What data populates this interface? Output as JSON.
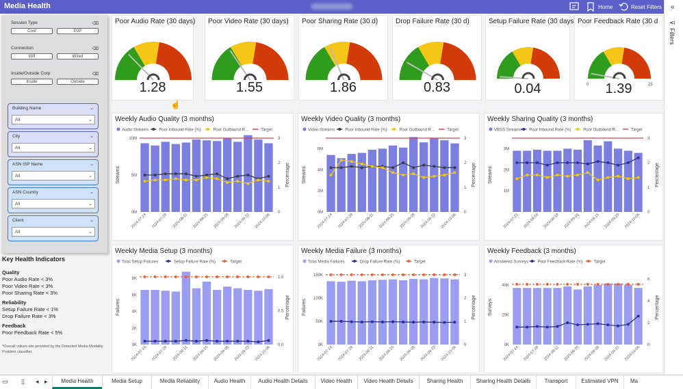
{
  "header": {
    "title": "Media Health",
    "home_label": "Home",
    "reset_label": "Reset Filters"
  },
  "filters_pane": {
    "label": "Filters"
  },
  "slicers": {
    "session_type": {
      "label": "Session Type",
      "options": [
        "Conf",
        "P2P"
      ]
    },
    "connection": {
      "label": "Connection",
      "options": [
        "Wifi",
        "Wired"
      ]
    },
    "inside_outside": {
      "label": "Inside/Outside Corp",
      "options": [
        "Inside",
        "Outside"
      ]
    },
    "dropdowns": [
      {
        "label": "Building Name",
        "value": "All"
      },
      {
        "label": "City",
        "value": "All"
      },
      {
        "label": "ASN ISP Name",
        "value": "All"
      },
      {
        "label": "ASN Country",
        "value": "All"
      },
      {
        "label": "Client",
        "value": "All"
      }
    ]
  },
  "khi": {
    "title": "Key Health Indicators",
    "groups": [
      {
        "name": "Quality",
        "items": [
          "Poor Audio Rate < 3%",
          "Poor Video Rate < 3%",
          "Poor Sharing Rate < 3%"
        ]
      },
      {
        "name": "Reliability",
        "items": [
          "Setup Failure Rate < 1%",
          "Drop Failure Rate < 3%"
        ]
      },
      {
        "name": "Feedback",
        "items": [
          "Poor Feedback Rate < 5%"
        ]
      }
    ],
    "footnote": "*Overall values are provided by the Detected Media Modality Problem classifier."
  },
  "gauges": [
    {
      "title": "Poor Audio Rate (30 days)",
      "value": "1.28",
      "num": 1.28,
      "max": 5,
      "ticks": []
    },
    {
      "title": "Poor Video Rate (30 days)",
      "value": "1.55",
      "num": 1.55,
      "max": 5,
      "ticks": []
    },
    {
      "title": "Poor Sharing Rate (30 d)",
      "value": "1.86",
      "num": 1.86,
      "max": 5,
      "ticks": []
    },
    {
      "title": "Drop Failure Rate (30 d)",
      "value": "0.83",
      "num": 0.83,
      "max": 5,
      "ticks": []
    },
    {
      "title": "Setup Failure Rate (30 days)",
      "value": "0.04",
      "num": 0.04,
      "max": 2,
      "ticks": []
    },
    {
      "title": "Poor Feedback Rate (30 d",
      "value": "1.39",
      "num": 1.39,
      "max": 25,
      "ticks": [
        "0",
        "25"
      ]
    }
  ],
  "chart_data": [
    {
      "type": "bar",
      "title": "Weekly Audio Quality (3 months)",
      "legend": [
        "Audio Streams",
        "Poor Inbound Rate (%)",
        "Poor Outbound R...",
        "Target"
      ],
      "ylabel": "Streams",
      "y2label": "Percentage",
      "yticks": [
        "0M",
        "5M",
        "10M"
      ],
      "y2ticks": [
        "0",
        "1",
        "2",
        "3"
      ],
      "ylim": [
        0,
        10
      ],
      "y2lim": [
        0,
        3
      ],
      "categories": [
        "2024-07-14",
        "2024-07-21",
        "2024-07-28",
        "2024-08-04",
        "2024-08-11",
        "2024-08-18",
        "2024-08-25",
        "2024-09-01",
        "2024-09-08",
        "2024-09-15",
        "2024-09-22",
        "2024-09-29",
        "2024-10-06"
      ],
      "xlabels": [
        "2024-07-14",
        "2024-07-28",
        "2024-08-11",
        "2024-08-25",
        "2024-09-08",
        "2024-09-22",
        "2024-10-06"
      ],
      "bars": [
        9.3,
        9.0,
        9.5,
        9.2,
        9.4,
        9.8,
        9.7,
        9.6,
        10.0,
        9.5,
        10.4,
        9.8,
        9.3
      ],
      "line1": [
        1.5,
        1.5,
        1.55,
        1.55,
        1.55,
        1.45,
        1.5,
        1.55,
        1.35,
        1.45,
        1.5,
        1.35,
        1.45
      ],
      "line2": [
        1.25,
        1.3,
        1.3,
        1.35,
        1.3,
        1.3,
        1.4,
        1.35,
        1.2,
        1.25,
        1.15,
        1.3,
        1.25
      ],
      "target": 3,
      "colors": {
        "bar": "#7b7fe0",
        "line1": "#3b3b4a",
        "line2": "#f2c80f",
        "target": "#d64550"
      }
    },
    {
      "type": "bar",
      "title": "Weekly Video Quality (3 months)",
      "legend": [
        "Video Streams",
        "Poor Inbound Rate (%)",
        "Poor Outbound R...",
        "Target"
      ],
      "ylabel": "Streams",
      "y2label": "Percentage",
      "yticks": [
        "0M",
        "2M",
        "4M",
        "6M"
      ],
      "y2ticks": [
        "0",
        "1",
        "2",
        "3"
      ],
      "ylim": [
        0,
        7
      ],
      "y2lim": [
        0,
        3
      ],
      "categories": [
        "2024-07-14",
        "2024-07-21",
        "2024-07-28",
        "2024-08-04",
        "2024-08-11",
        "2024-08-18",
        "2024-08-25",
        "2024-09-01",
        "2024-09-08",
        "2024-09-15",
        "2024-09-22",
        "2024-09-29",
        "2024-10-06"
      ],
      "xlabels": [
        "2024-07-14",
        "2024-07-28",
        "2024-08-11",
        "2024-08-25",
        "2024-09-08",
        "2024-09-22",
        "2024-10-06"
      ],
      "bars": [
        5.4,
        5.1,
        5.5,
        5.6,
        5.9,
        6.0,
        6.3,
        6.1,
        7.1,
        6.6,
        7.0,
        6.8,
        6.5
      ],
      "line1": [
        1.8,
        1.8,
        1.85,
        1.8,
        1.85,
        1.85,
        1.8,
        2.0,
        1.8,
        1.9,
        1.85,
        1.8,
        1.8
      ],
      "line2": [
        1.5,
        2.1,
        2.05,
        1.95,
        1.85,
        1.8,
        1.6,
        1.5,
        1.55,
        1.4,
        1.45,
        1.5,
        1.6
      ],
      "target": 3,
      "colors": {
        "bar": "#7b7fe0",
        "line1": "#3b3b4a",
        "line2": "#f2c80f",
        "target": "#d64550"
      }
    },
    {
      "type": "bar",
      "title": "Weekly Sharing Quality (3 months)",
      "legend": [
        "VBSS Streams",
        "Poor Inbound Rate (%)",
        "Poor Outbound R...",
        "Target"
      ],
      "ylabel": "Streams",
      "y2label": "Percentage",
      "yticks": [
        "1M",
        "2M",
        "3M"
      ],
      "y2ticks": [
        "0",
        "1",
        "2",
        "3"
      ],
      "ylim": [
        0,
        3.5
      ],
      "y2lim": [
        0,
        3
      ],
      "categories": [
        "2024-07-14",
        "2024-07-21",
        "2024-07-28",
        "2024-08-04",
        "2024-08-11",
        "2024-08-18",
        "2024-08-25",
        "2024-09-01",
        "2024-09-08",
        "2024-09-15",
        "2024-09-22",
        "2024-09-29",
        "2024-10-06"
      ],
      "xlabels": [
        "2024-07-21",
        "2024-08-04",
        "2024-08-18",
        "2024-09-01",
        "2024-09-15",
        "2024-09-29",
        "2024-10-06"
      ],
      "bars": [
        2.9,
        2.9,
        2.95,
        2.9,
        2.9,
        3.0,
        2.95,
        3.4,
        3.15,
        3.35,
        3.0,
        2.9,
        2.8
      ],
      "line1": [
        2.0,
        2.0,
        2.0,
        1.9,
        2.0,
        2.0,
        2.0,
        1.95,
        2.05,
        2.0,
        1.9,
        2.0,
        2.2
      ],
      "line2": [
        1.35,
        1.5,
        1.5,
        1.4,
        1.5,
        1.45,
        1.5,
        1.6,
        1.3,
        1.4,
        1.45,
        1.35,
        1.4
      ],
      "target": 3,
      "colors": {
        "bar": "#7b7fe0",
        "line1": "#2e3192",
        "line2": "#f2c80f",
        "target": "#d64550"
      }
    },
    {
      "type": "bar",
      "title": "Weekly Media Setup (3 months)",
      "legend": [
        "Total Setup Failures",
        "Setup Failure Rate (%)",
        "Target"
      ],
      "ylabel": "Failures",
      "y2label": "Percentage",
      "yticks": [
        "0K",
        "2K",
        "4K",
        "6K",
        "8K"
      ],
      "y2ticks": [
        "0.0",
        "0.5",
        "1.0"
      ],
      "ylim": [
        0,
        9
      ],
      "y2lim": [
        0,
        1.1
      ],
      "categories": [
        "2024-07-14",
        "2024-07-21",
        "2024-07-28",
        "2024-08-04",
        "2024-08-11",
        "2024-08-18",
        "2024-08-25",
        "2024-09-01",
        "2024-09-08",
        "2024-09-15",
        "2024-09-22",
        "2024-09-29",
        "2024-10-06"
      ],
      "xlabels": [
        "2024-07-14",
        "2024-07-28",
        "2024-08-11",
        "2024-08-25",
        "2024-09-08",
        "2024-09-22",
        "2024-10-06"
      ],
      "bars": [
        6.6,
        6.6,
        6.5,
        6.4,
        8.8,
        6.8,
        7.6,
        6.6,
        7.0,
        6.8,
        6.6,
        6.5,
        6.7
      ],
      "line1": [
        0.05,
        0.05,
        0.05,
        0.05,
        0.06,
        0.05,
        0.06,
        0.05,
        0.05,
        0.05,
        0.05,
        0.04,
        0.06
      ],
      "line2": [],
      "target": 1.0,
      "colors": {
        "bar": "#9b9ef0",
        "line1": "#2e3192",
        "line2": "#f2c80f",
        "target": "#e8643c"
      }
    },
    {
      "type": "bar",
      "title": "Weekly Media Failure (3 months)",
      "legend": [
        "Total Media Failures",
        "Drop Failure Rate (%)",
        "Target"
      ],
      "ylabel": "Failures",
      "y2label": "Percentage",
      "yticks": [
        "0K",
        "50K",
        "100K",
        "150K"
      ],
      "y2ticks": [
        "0",
        "1",
        "2",
        "3"
      ],
      "ylim": [
        0,
        160
      ],
      "y2lim": [
        0,
        3.2
      ],
      "categories": [
        "2024-07-14",
        "2024-07-21",
        "2024-07-28",
        "2024-08-04",
        "2024-08-11",
        "2024-08-18",
        "2024-08-25",
        "2024-09-01",
        "2024-09-08",
        "2024-09-15",
        "2024-09-22",
        "2024-09-29",
        "2024-10-06"
      ],
      "xlabels": [
        "2024-07-14",
        "2024-07-28",
        "2024-08-11",
        "2024-08-25",
        "2024-09-08",
        "2024-09-22",
        "2024-10-06"
      ],
      "bars": [
        136,
        135,
        137,
        136,
        138,
        139,
        140,
        138,
        141,
        140,
        143,
        142,
        140
      ],
      "line1": [
        1.0,
        1.0,
        0.98,
        0.97,
        0.98,
        0.97,
        0.98,
        0.97,
        0.96,
        0.97,
        0.96,
        0.95,
        0.96
      ],
      "line2": [],
      "target": 3,
      "colors": {
        "bar": "#9b9ef0",
        "line1": "#2e3192",
        "line2": "#f2c80f",
        "target": "#e8643c"
      }
    },
    {
      "type": "bar",
      "title": "Weekly Feedback (3 months)",
      "legend": [
        "Answered Surveys",
        "Poor Feedback Rate (%)",
        "Target"
      ],
      "ylabel": "Surveys",
      "y2label": "Percentage",
      "yticks": [
        "0K",
        "20K",
        "40K"
      ],
      "y2ticks": [
        "0",
        "2",
        "4",
        "6"
      ],
      "ylim": [
        0,
        50
      ],
      "y2lim": [
        0,
        6.8
      ],
      "categories": [
        "2024-07-14",
        "2024-07-21",
        "2024-07-28",
        "2024-08-04",
        "2024-08-11",
        "2024-08-18",
        "2024-08-25",
        "2024-09-01",
        "2024-09-08",
        "2024-09-15",
        "2024-09-22",
        "2024-09-29",
        "2024-10-06"
      ],
      "xlabels": [
        "2024-07-14",
        "2024-07-28",
        "2024-08-11",
        "2024-08-25",
        "2024-09-08",
        "2024-09-22",
        "2024-10-06"
      ],
      "bars": [
        38,
        38,
        38,
        38,
        38,
        39,
        37,
        39,
        40,
        41,
        41,
        40,
        38
      ],
      "line1": [
        1.6,
        1.6,
        1.65,
        1.6,
        1.65,
        2.0,
        1.8,
        1.85,
        1.9,
        1.8,
        1.7,
        1.85,
        2.6
      ],
      "line2": [],
      "target": 5.5,
      "colors": {
        "bar": "#9b9ef0",
        "line1": "#2e3192",
        "line2": "#f2c80f",
        "target": "#e8643c"
      }
    }
  ],
  "tabs": [
    "Media Health",
    "Media Setup",
    "Media Reliability",
    "Audio Health",
    "Audio Health Details",
    "Video Health",
    "Video Health Details",
    "Sharing Health",
    "Sharing Health Details",
    "Transport",
    "Estimated VPN",
    "Ma"
  ]
}
